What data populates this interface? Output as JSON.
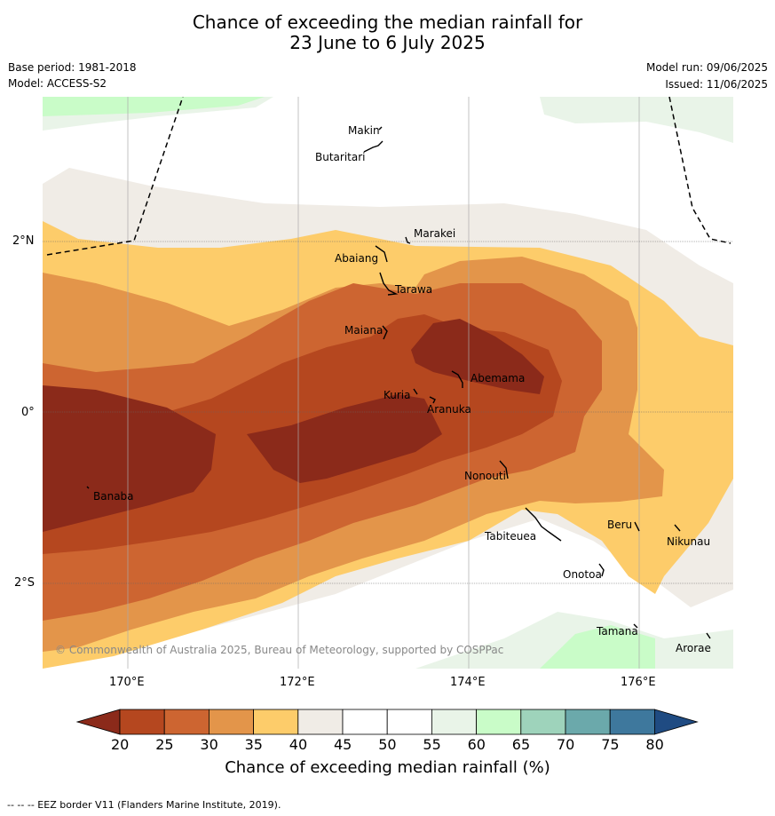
{
  "title_line1": "Chance of exceeding the median rainfall for",
  "title_line2": "23 June to 6 July 2025",
  "base_period": "Base period: 1981-2018",
  "model": "Model: ACCESS-S2",
  "model_run": "Model run: 09/06/2025",
  "issued": "Issued: 11/06/2025",
  "copyright": "© Commonwealth of Australia 2025, Bureau of Meteorology, supported by COSPPac",
  "lat_labels": [
    "2°N",
    "0°",
    "2°S"
  ],
  "lon_labels": [
    "170°E",
    "172°E",
    "174°E",
    "176°E"
  ],
  "places": [
    "Makin",
    "Butaritari",
    "Marakei",
    "Abaiang",
    "Tarawa",
    "Maiana",
    "Abemama",
    "Kuria",
    "Aranuka",
    "Nonouti",
    "Banaba",
    "Tabiteuea",
    "Beru",
    "Nikunau",
    "Onotoa",
    "Tamana",
    "Arorae"
  ],
  "colorbar": {
    "ticks": [
      "20",
      "25",
      "30",
      "35",
      "40",
      "45",
      "50",
      "55",
      "60",
      "65",
      "70",
      "75",
      "80"
    ],
    "colors": [
      "#8b2a1a",
      "#b5471f",
      "#cd6531",
      "#e3954a",
      "#fdcc6a",
      "#f0ece6",
      "#ffffff",
      "#ffffff",
      "#e9f4e8",
      "#c9fcc8",
      "#9ed3bb",
      "#6ba9ab",
      "#3e789d",
      "#1f4b82"
    ],
    "title": "Chance of exceeding median rainfall (%)"
  },
  "footer": "--  --  -- EEZ border V11 (Flanders Marine Institute, 2019)."
}
